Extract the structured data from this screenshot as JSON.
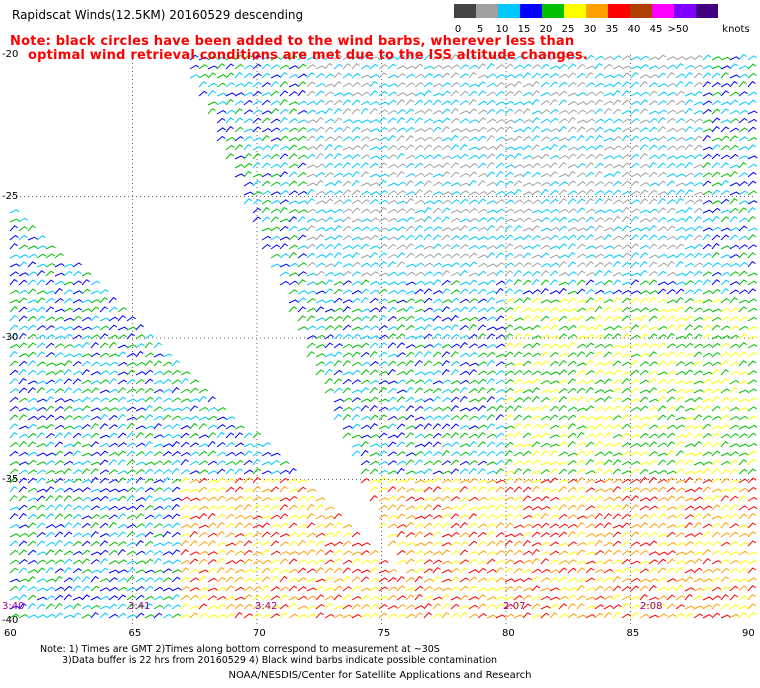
{
  "header": {
    "title": "Rapidscat Winds(12.5KM) 20160529 descending",
    "note_line1": "Note: black circles have been added to the wind barbs, wherever less than",
    "note_line2": "optimal wind retrieval conditions are met due to the ISS altitude changes."
  },
  "colorbar": {
    "unit_label": "knots",
    "segments": [
      {
        "label": "0",
        "color": "#444444"
      },
      {
        "label": "5",
        "color": "#a0a0a0"
      },
      {
        "label": "10",
        "color": "#00c8ff"
      },
      {
        "label": "15",
        "color": "#0000ff"
      },
      {
        "label": "20",
        "color": "#00c000"
      },
      {
        "label": "25",
        "color": "#ffff00"
      },
      {
        "label": "30",
        "color": "#ffa000"
      },
      {
        "label": "35",
        "color": "#ff0000"
      },
      {
        "label": "40",
        "color": "#b04000"
      },
      {
        "label": "45",
        "color": "#ff00ff"
      },
      {
        "label": ">50",
        "color": "#8000ff"
      },
      {
        "label": "",
        "color": "#400080"
      }
    ]
  },
  "map": {
    "lat_labels": [
      "-20",
      "-25",
      "-30",
      "-35",
      "-40"
    ],
    "lon_labels": [
      "60",
      "65",
      "70",
      "75",
      "80",
      "85",
      "90"
    ],
    "time_labels": [
      "3:40",
      "3:41",
      "3:42",
      "2:07",
      "2:08"
    ]
  },
  "footer": {
    "note_line1": "Note: 1) Times are GMT 2)Times along bottom correspond to measurement at ~30S",
    "note_line2": "3)Data buffer is 22 hrs from 20160529 4) Black wind barbs indicate possible contamination",
    "credit": "NOAA/NESDIS/Center for Satellite Applications and Research"
  }
}
